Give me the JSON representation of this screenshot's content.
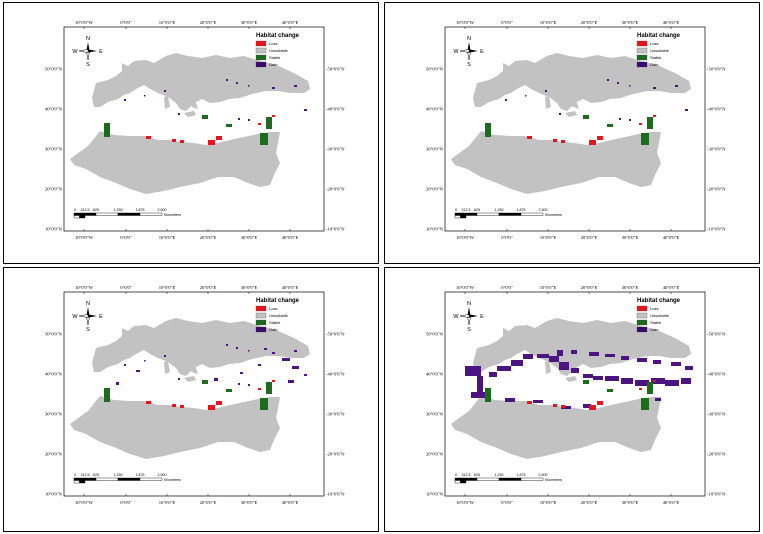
{
  "maps": [
    {
      "id": "map-1",
      "title": "Habitat change",
      "gain_level": 1
    },
    {
      "id": "map-2",
      "title": "Habitat change",
      "gain_level": 1
    },
    {
      "id": "map-3",
      "title": "Habitat change",
      "gain_level": 2
    },
    {
      "id": "map-4",
      "title": "Habitat change",
      "gain_level": 3
    }
  ],
  "legend": {
    "title": "Habitat change",
    "items": [
      {
        "label": "Loss",
        "color": "#e8141b"
      },
      {
        "label": "Unsuitable",
        "color": "#c2c2c2"
      },
      {
        "label": "Stable",
        "color": "#1d6b1d"
      },
      {
        "label": "Gain",
        "color": "#3a0a6e"
      }
    ]
  },
  "compass": {
    "n": "N",
    "s": "S",
    "e": "E",
    "w": "W"
  },
  "longitude_labels": [
    "10°0'0\"W",
    "0°0'0\"",
    "10°0'0\"E",
    "20°0'0\"E",
    "30°0'0\"E",
    "40°0'0\"E"
  ],
  "latitude_labels": [
    "50°0'0\"N",
    "40°0'0\"N",
    "30°0'0\"N",
    "20°0'0\"N",
    "10°0'0\"N"
  ],
  "scale_bar": {
    "ticks": [
      "0",
      "312.5",
      "625",
      "1,250",
      "1,875",
      "2,500"
    ],
    "unit": "Kilometers"
  },
  "colors": {
    "land_unsuitable": "#c2c2c2",
    "sea": "#ffffff",
    "loss": "#e8141b",
    "stable": "#1d6b1d",
    "gain": "#4b1480"
  }
}
